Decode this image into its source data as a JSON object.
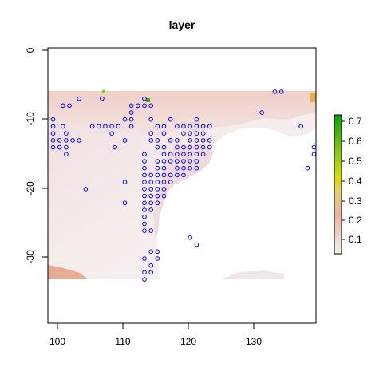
{
  "chart_data": {
    "type": "heatmap",
    "title": "layer",
    "xlabel": "",
    "ylabel": "",
    "xlim": [
      98.2,
      139.3
    ],
    "ylim": [
      -39.3,
      0.3
    ],
    "x_ticks": [
      100,
      110,
      120,
      130
    ],
    "x_tick_labels": [
      "100",
      "110",
      "120",
      "130"
    ],
    "y_ticks": [
      0,
      -10,
      -20,
      -30
    ],
    "y_tick_labels": [
      "0",
      "-10",
      "-20",
      "-30"
    ],
    "raster_extent": {
      "x": [
        98.2,
        139.3
      ],
      "y": [
        -33.0,
        -6.0
      ]
    },
    "raster_notes": "values mostly 0.05-0.15 (pale pink); higher near the coast: green cells near (106.5,-6), (112.8,-7); yellow-orange near (138.8,-7); orange in lower-left corner ~0.2",
    "legend": {
      "position": "right",
      "ticks": [
        0.1,
        0.2,
        0.3,
        0.4,
        0.5,
        0.6,
        0.7
      ],
      "tick_labels": [
        "0.1",
        "0.2",
        "0.3",
        "0.4",
        "0.5",
        "0.6",
        "0.7"
      ],
      "min": 0.0,
      "max": 0.72
    },
    "points_color": "#0000ff",
    "points": [
      [
        133,
        -6
      ],
      [
        134,
        -6
      ],
      [
        106.5,
        -7
      ],
      [
        113,
        -7
      ],
      [
        103,
        -7
      ],
      [
        100.5,
        -8
      ],
      [
        101.5,
        -8
      ],
      [
        111,
        -8
      ],
      [
        112,
        -8
      ],
      [
        113,
        -8
      ],
      [
        114,
        -8
      ],
      [
        111,
        -9
      ],
      [
        131,
        -9
      ],
      [
        99,
        -10
      ],
      [
        110,
        -10
      ],
      [
        111,
        -10
      ],
      [
        114,
        -10
      ],
      [
        117,
        -10
      ],
      [
        121,
        -10
      ],
      [
        99,
        -11
      ],
      [
        100.5,
        -11
      ],
      [
        105,
        -11
      ],
      [
        106,
        -11
      ],
      [
        107,
        -11
      ],
      [
        108,
        -11
      ],
      [
        109,
        -11
      ],
      [
        111,
        -11
      ],
      [
        115,
        -11
      ],
      [
        116,
        -11
      ],
      [
        118,
        -11
      ],
      [
        119,
        -11
      ],
      [
        120,
        -11
      ],
      [
        121,
        -11
      ],
      [
        122,
        -11
      ],
      [
        123,
        -11
      ],
      [
        137,
        -11
      ],
      [
        99,
        -12
      ],
      [
        101,
        -12
      ],
      [
        108,
        -12
      ],
      [
        114,
        -12
      ],
      [
        116,
        -12
      ],
      [
        119,
        -12
      ],
      [
        120,
        -12
      ],
      [
        121,
        -12
      ],
      [
        122,
        -12
      ],
      [
        99,
        -13
      ],
      [
        100,
        -13
      ],
      [
        101,
        -13
      ],
      [
        102,
        -13
      ],
      [
        103,
        -13
      ],
      [
        110,
        -13
      ],
      [
        114,
        -13
      ],
      [
        115,
        -13
      ],
      [
        117,
        -13
      ],
      [
        118,
        -13
      ],
      [
        120,
        -13
      ],
      [
        121,
        -13
      ],
      [
        122,
        -13
      ],
      [
        123,
        -13
      ],
      [
        99,
        -14
      ],
      [
        100,
        -14
      ],
      [
        101,
        -14
      ],
      [
        108.5,
        -14
      ],
      [
        115,
        -14
      ],
      [
        116,
        -14
      ],
      [
        118,
        -14
      ],
      [
        119,
        -14
      ],
      [
        120,
        -14
      ],
      [
        121,
        -14
      ],
      [
        122,
        -14
      ],
      [
        123,
        -14
      ],
      [
        139,
        -14
      ],
      [
        101,
        -15
      ],
      [
        113,
        -15
      ],
      [
        116,
        -15
      ],
      [
        117,
        -15
      ],
      [
        118,
        -15
      ],
      [
        119,
        -15
      ],
      [
        120,
        -15
      ],
      [
        121,
        -15
      ],
      [
        122,
        -15
      ],
      [
        139,
        -15
      ],
      [
        113,
        -16
      ],
      [
        115,
        -16
      ],
      [
        116,
        -16
      ],
      [
        117,
        -16
      ],
      [
        118,
        -16
      ],
      [
        119,
        -16
      ],
      [
        120,
        -16
      ],
      [
        121,
        -16
      ],
      [
        113,
        -17
      ],
      [
        115,
        -17
      ],
      [
        116,
        -17
      ],
      [
        118,
        -17
      ],
      [
        119,
        -17
      ],
      [
        120,
        -17
      ],
      [
        121,
        -17
      ],
      [
        138,
        -17
      ],
      [
        113,
        -18
      ],
      [
        114,
        -18
      ],
      [
        115,
        -18
      ],
      [
        116,
        -18
      ],
      [
        117,
        -18
      ],
      [
        118,
        -18
      ],
      [
        119,
        -18
      ],
      [
        110,
        -19
      ],
      [
        113,
        -19
      ],
      [
        114,
        -19
      ],
      [
        115,
        -19
      ],
      [
        116,
        -19
      ],
      [
        117,
        -19
      ],
      [
        104,
        -20
      ],
      [
        113,
        -20
      ],
      [
        114,
        -20
      ],
      [
        115,
        -20
      ],
      [
        116,
        -20
      ],
      [
        113,
        -21
      ],
      [
        114,
        -21
      ],
      [
        115,
        -21
      ],
      [
        116,
        -21
      ],
      [
        110,
        -22
      ],
      [
        113,
        -22
      ],
      [
        114,
        -22
      ],
      [
        115,
        -22
      ],
      [
        113,
        -23
      ],
      [
        114,
        -23
      ],
      [
        113,
        -24
      ],
      [
        113,
        -25
      ],
      [
        113,
        -26
      ],
      [
        114,
        -26
      ],
      [
        120,
        -27
      ],
      [
        121,
        -28
      ],
      [
        114,
        -29
      ],
      [
        115,
        -29
      ],
      [
        113,
        -30
      ],
      [
        115,
        -30
      ],
      [
        114,
        -31
      ],
      [
        113,
        -32
      ],
      [
        114,
        -32
      ],
      [
        113,
        -33
      ]
    ]
  }
}
